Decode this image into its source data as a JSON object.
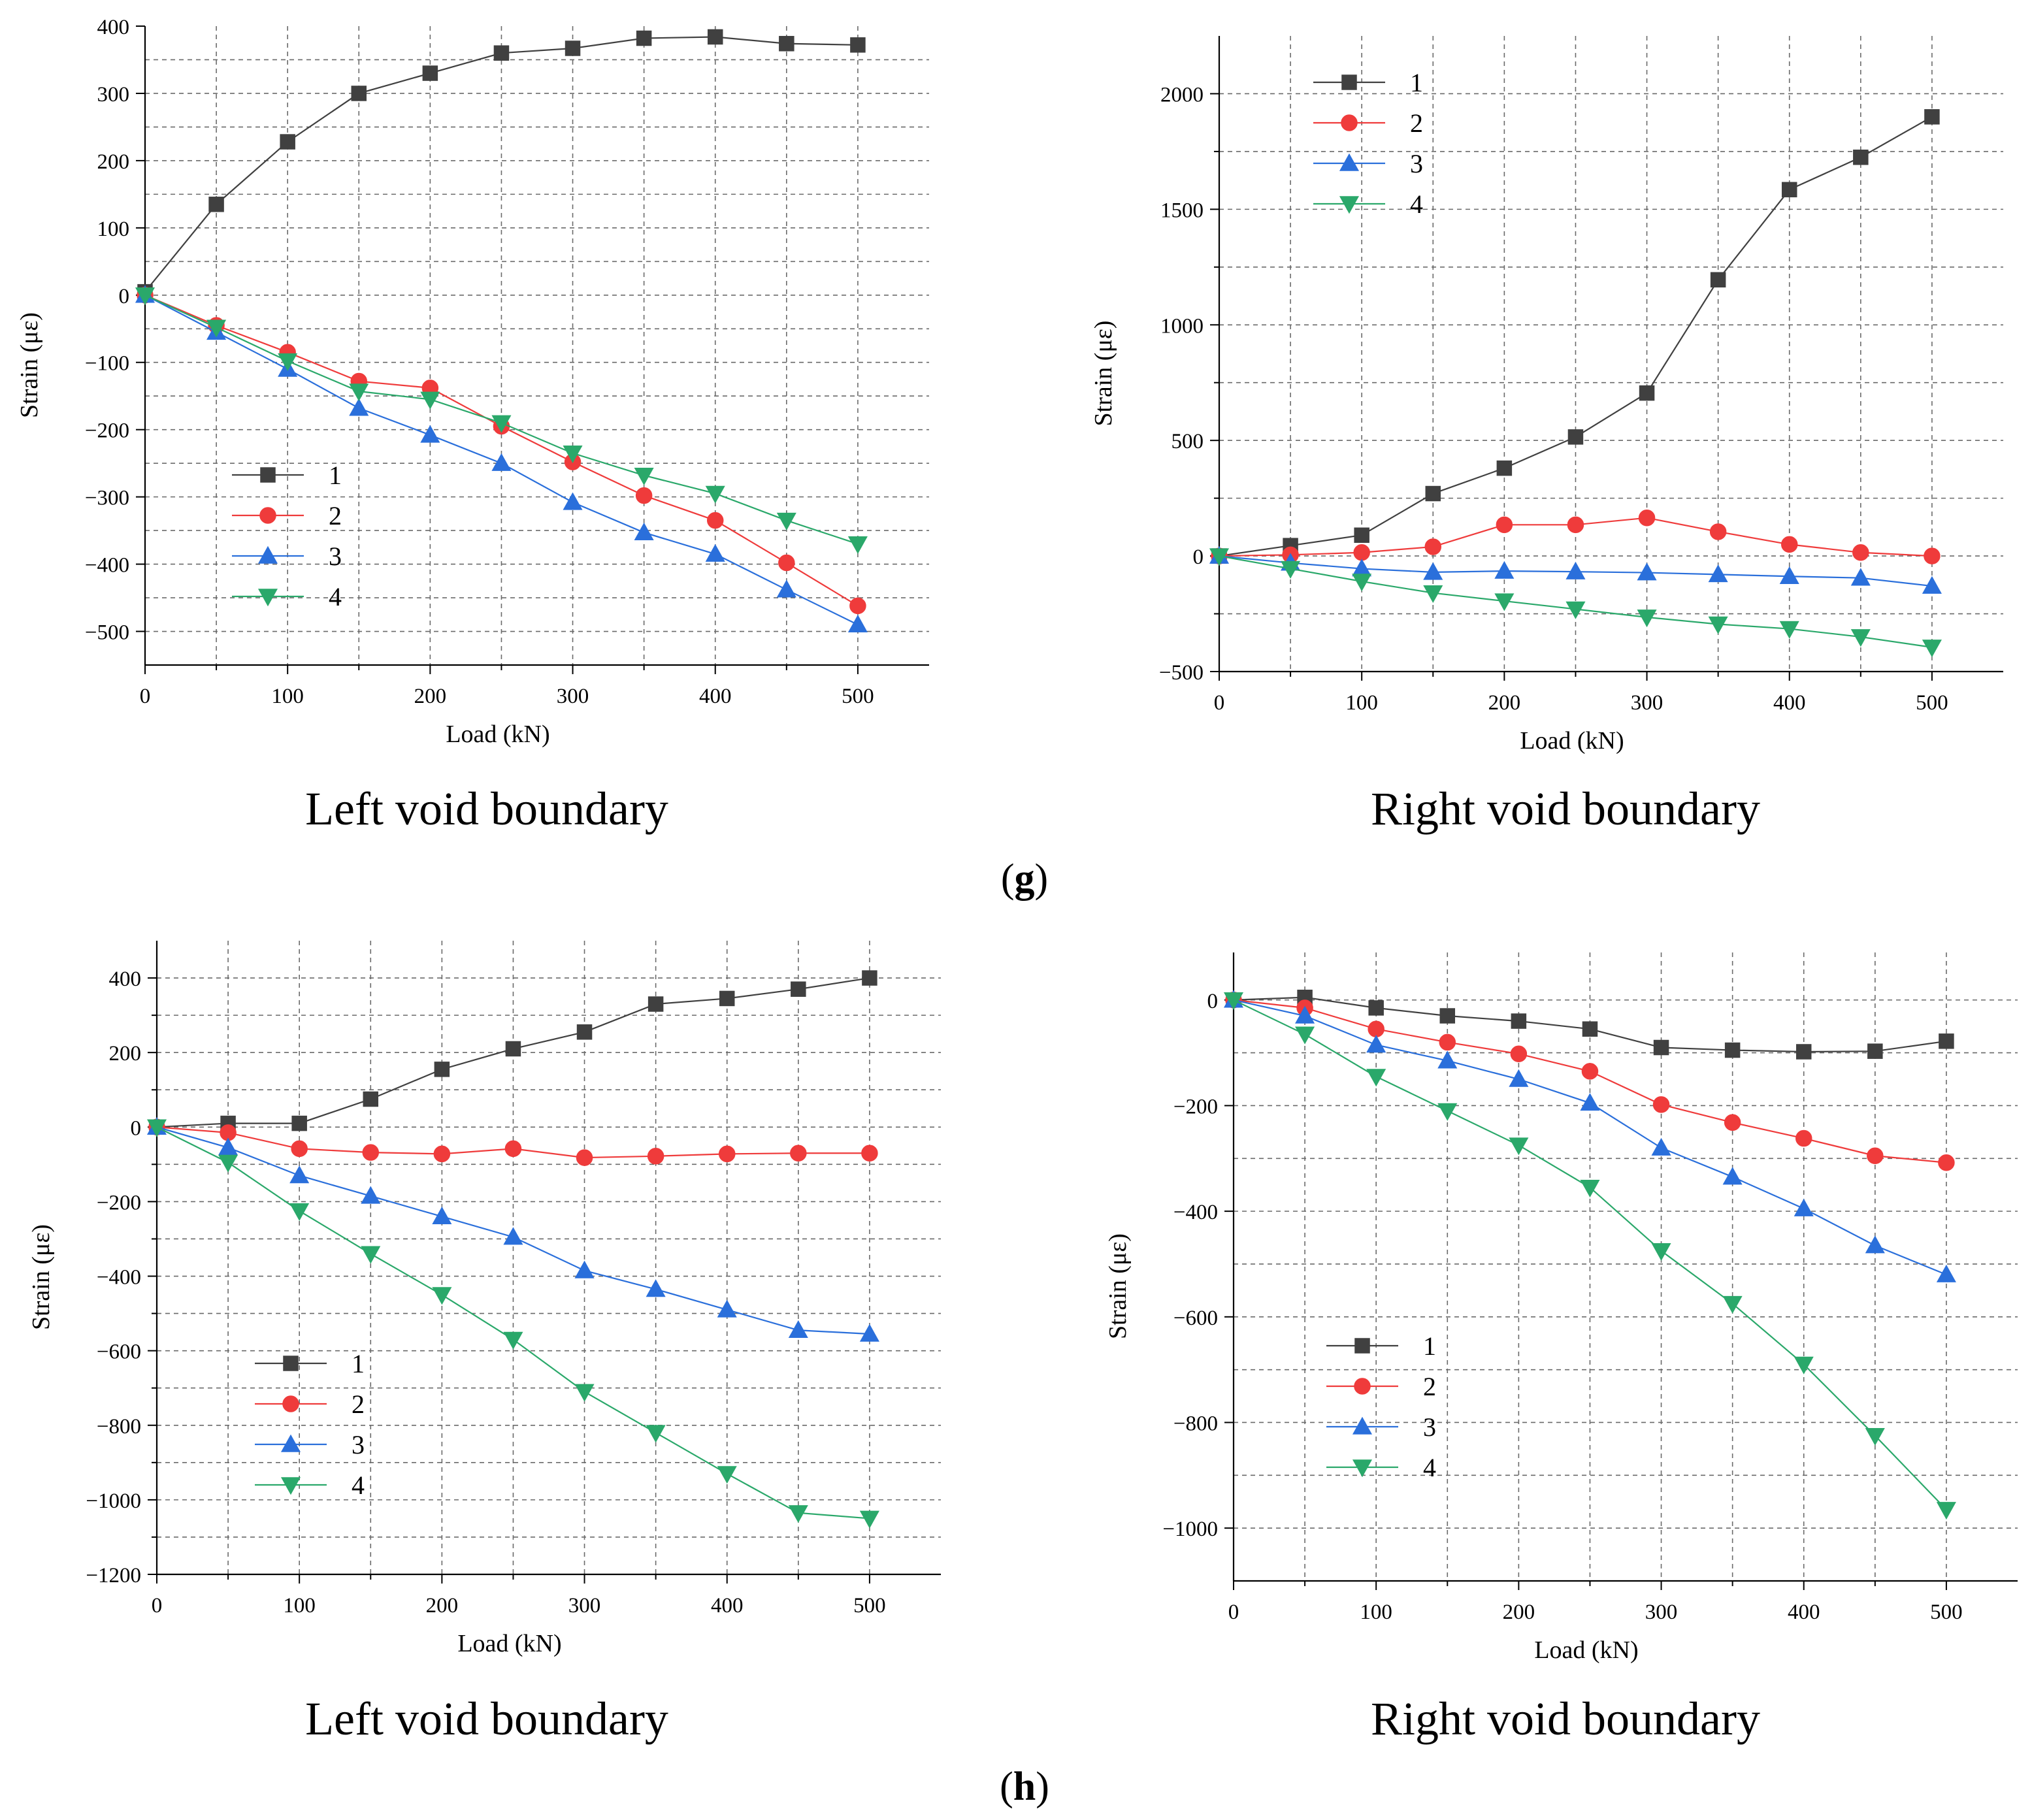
{
  "figure": {
    "panel_g": {
      "open": "(",
      "letter": "g",
      "close": ")"
    },
    "panel_h": {
      "open": "(",
      "letter": "h",
      "close": ")"
    }
  },
  "chart_data": [
    {
      "id": "g-left",
      "type": "line",
      "title": "Left void boundary",
      "xlabel": "Load (kN)",
      "ylabel": "Strain (με)",
      "xlim": [
        0,
        550
      ],
      "ylim": [
        -550,
        400
      ],
      "x_ticks": [
        0,
        100,
        200,
        300,
        400,
        500
      ],
      "y_ticks": [
        -500,
        -400,
        -300,
        -200,
        -100,
        0,
        100,
        200,
        300,
        400
      ],
      "y_ticks_text": [
        "−500",
        "−400",
        "−300",
        "−200",
        "−100",
        "0",
        "100",
        "200",
        "300",
        "400"
      ],
      "legend_position": "lower-left",
      "x": [
        0,
        50,
        100,
        150,
        200,
        250,
        300,
        350,
        400,
        450,
        500
      ],
      "series": [
        {
          "name": "1",
          "color": "#404040",
          "marker": "square",
          "values": [
            5,
            135,
            228,
            300,
            330,
            360,
            367,
            382,
            384,
            374,
            372
          ]
        },
        {
          "name": "2",
          "color": "#ef3b3b",
          "marker": "circle",
          "values": [
            0,
            -45,
            -85,
            -128,
            -138,
            -195,
            -248,
            -298,
            -335,
            -398,
            -462
          ]
        },
        {
          "name": "3",
          "color": "#2a6fdb",
          "marker": "triangle-up",
          "values": [
            0,
            -55,
            -110,
            -168,
            -208,
            -250,
            -308,
            -353,
            -385,
            -438,
            -490
          ]
        },
        {
          "name": "4",
          "color": "#2aa86a",
          "marker": "triangle-down",
          "values": [
            0,
            -48,
            -98,
            -143,
            -155,
            -190,
            -235,
            -268,
            -295,
            -335,
            -370
          ]
        }
      ]
    },
    {
      "id": "g-right",
      "type": "line",
      "title": "Right void boundary",
      "xlabel": "Load (kN)",
      "ylabel": "Strain (με)",
      "xlim": [
        0,
        550
      ],
      "ylim": [
        -500,
        2250
      ],
      "x_ticks": [
        0,
        100,
        200,
        300,
        400,
        500
      ],
      "y_ticks": [
        -500,
        0,
        500,
        1000,
        1500,
        2000
      ],
      "y_ticks_text": [
        "−500",
        "0",
        "500",
        "1000",
        "1500",
        "2000"
      ],
      "legend_position": "top-left",
      "x": [
        0,
        50,
        100,
        150,
        200,
        250,
        300,
        350,
        400,
        450,
        500
      ],
      "series": [
        {
          "name": "1",
          "color": "#404040",
          "marker": "square",
          "values": [
            0,
            45,
            90,
            270,
            380,
            515,
            705,
            1195,
            1585,
            1725,
            1900
          ]
        },
        {
          "name": "2",
          "color": "#ef3b3b",
          "marker": "circle",
          "values": [
            0,
            5,
            15,
            40,
            135,
            135,
            165,
            105,
            50,
            15,
            0
          ]
        },
        {
          "name": "3",
          "color": "#2a6fdb",
          "marker": "triangle-up",
          "values": [
            0,
            -30,
            -55,
            -70,
            -65,
            -68,
            -72,
            -80,
            -88,
            -95,
            -130
          ]
        },
        {
          "name": "4",
          "color": "#2aa86a",
          "marker": "triangle-down",
          "values": [
            0,
            -55,
            -110,
            -160,
            -195,
            -230,
            -265,
            -295,
            -315,
            -350,
            -395
          ]
        }
      ]
    },
    {
      "id": "h-left",
      "type": "line",
      "title": "Left void boundary",
      "xlabel": "Load (kN)",
      "ylabel": "Strain (με)",
      "xlim": [
        0,
        550
      ],
      "ylim": [
        -1200,
        500
      ],
      "x_ticks": [
        0,
        100,
        200,
        300,
        400,
        500
      ],
      "y_ticks": [
        -1200,
        -1000,
        -800,
        -600,
        -400,
        -200,
        0,
        200,
        400
      ],
      "y_ticks_text": [
        "−1200",
        "−1000",
        "−800",
        "−600",
        "−400",
        "−200",
        "0",
        "200",
        "400"
      ],
      "legend_position": "lower-left",
      "x": [
        0,
        50,
        100,
        150,
        200,
        250,
        300,
        350,
        400,
        450,
        500
      ],
      "series": [
        {
          "name": "1",
          "color": "#404040",
          "marker": "square",
          "values": [
            0,
            10,
            10,
            75,
            155,
            210,
            255,
            330,
            345,
            370,
            400
          ]
        },
        {
          "name": "2",
          "color": "#ef3b3b",
          "marker": "circle",
          "values": [
            0,
            -15,
            -58,
            -68,
            -72,
            -58,
            -82,
            -78,
            -72,
            -70,
            -70
          ]
        },
        {
          "name": "3",
          "color": "#2a6fdb",
          "marker": "triangle-up",
          "values": [
            0,
            -55,
            -130,
            -185,
            -240,
            -295,
            -385,
            -435,
            -490,
            -545,
            -555
          ]
        },
        {
          "name": "4",
          "color": "#2aa86a",
          "marker": "triangle-down",
          "values": [
            0,
            -95,
            -225,
            -340,
            -450,
            -570,
            -710,
            -820,
            -930,
            -1035,
            -1050
          ]
        }
      ]
    },
    {
      "id": "h-right",
      "type": "line",
      "title": "Right void boundary",
      "xlabel": "Load (kN)",
      "ylabel": "Strain (με)",
      "xlim": [
        0,
        550
      ],
      "ylim": [
        -1100,
        90
      ],
      "x_ticks": [
        0,
        100,
        200,
        300,
        400,
        500
      ],
      "y_ticks": [
        -1000,
        -800,
        -600,
        -400,
        -200,
        0
      ],
      "y_ticks_text": [
        "−1000",
        "−800",
        "−600",
        "−400",
        "−200",
        "0"
      ],
      "legend_position": "lower-left",
      "x": [
        0,
        50,
        100,
        150,
        200,
        250,
        300,
        350,
        400,
        450,
        500
      ],
      "series": [
        {
          "name": "1",
          "color": "#404040",
          "marker": "square",
          "values": [
            0,
            5,
            -15,
            -30,
            -40,
            -55,
            -90,
            -95,
            -98,
            -97,
            -78
          ]
        },
        {
          "name": "2",
          "color": "#ef3b3b",
          "marker": "circle",
          "values": [
            0,
            -15,
            -55,
            -80,
            -102,
            -135,
            -198,
            -232,
            -262,
            -295,
            -308
          ]
        },
        {
          "name": "3",
          "color": "#2a6fdb",
          "marker": "triangle-up",
          "values": [
            0,
            -30,
            -85,
            -115,
            -150,
            -195,
            -280,
            -335,
            -395,
            -465,
            -520
          ]
        },
        {
          "name": "4",
          "color": "#2aa86a",
          "marker": "triangle-down",
          "values": [
            0,
            -65,
            -145,
            -210,
            -275,
            -355,
            -475,
            -575,
            -690,
            -825,
            -965
          ]
        }
      ]
    }
  ]
}
